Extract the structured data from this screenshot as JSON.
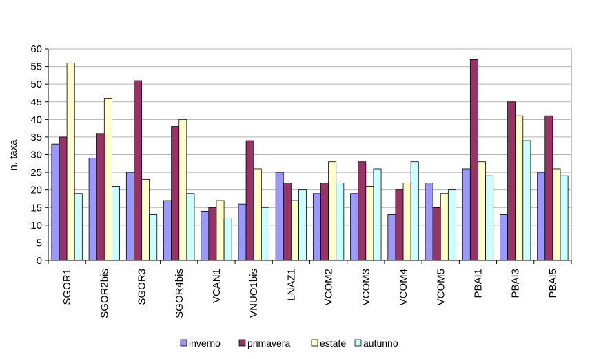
{
  "chart_data": {
    "type": "bar",
    "title": "",
    "xlabel": "",
    "ylabel": "n. taxa",
    "ylim": [
      0,
      60
    ],
    "ytick_step": 5,
    "grid": true,
    "legend_position": "bottom",
    "categories": [
      "SGOR1",
      "SGOR2bis",
      "SGOR3",
      "SGOR4bis",
      "VCAN1",
      "VNUO1bis",
      "LNAZ1",
      "VCOM2",
      "VCOM3",
      "VCOM4",
      "VCOM5",
      "PBAI1",
      "PBAI3",
      "PBAI5"
    ],
    "series": [
      {
        "name": "inverno",
        "color": "#9999FF",
        "values": [
          33,
          29,
          25,
          17,
          14,
          16,
          25,
          19,
          19,
          13,
          22,
          26,
          13,
          25
        ]
      },
      {
        "name": "primavera",
        "color": "#993366",
        "values": [
          35,
          36,
          51,
          38,
          15,
          34,
          22,
          22,
          28,
          20,
          15,
          57,
          45,
          41
        ]
      },
      {
        "name": "estate",
        "color": "#FFFFCC",
        "values": [
          56,
          46,
          23,
          40,
          17,
          26,
          17,
          28,
          21,
          22,
          19,
          28,
          41,
          26
        ]
      },
      {
        "name": "autunno",
        "color": "#CCFFFF",
        "values": [
          19,
          21,
          13,
          19,
          12,
          15,
          20,
          22,
          26,
          28,
          20,
          24,
          34,
          24
        ]
      }
    ]
  }
}
